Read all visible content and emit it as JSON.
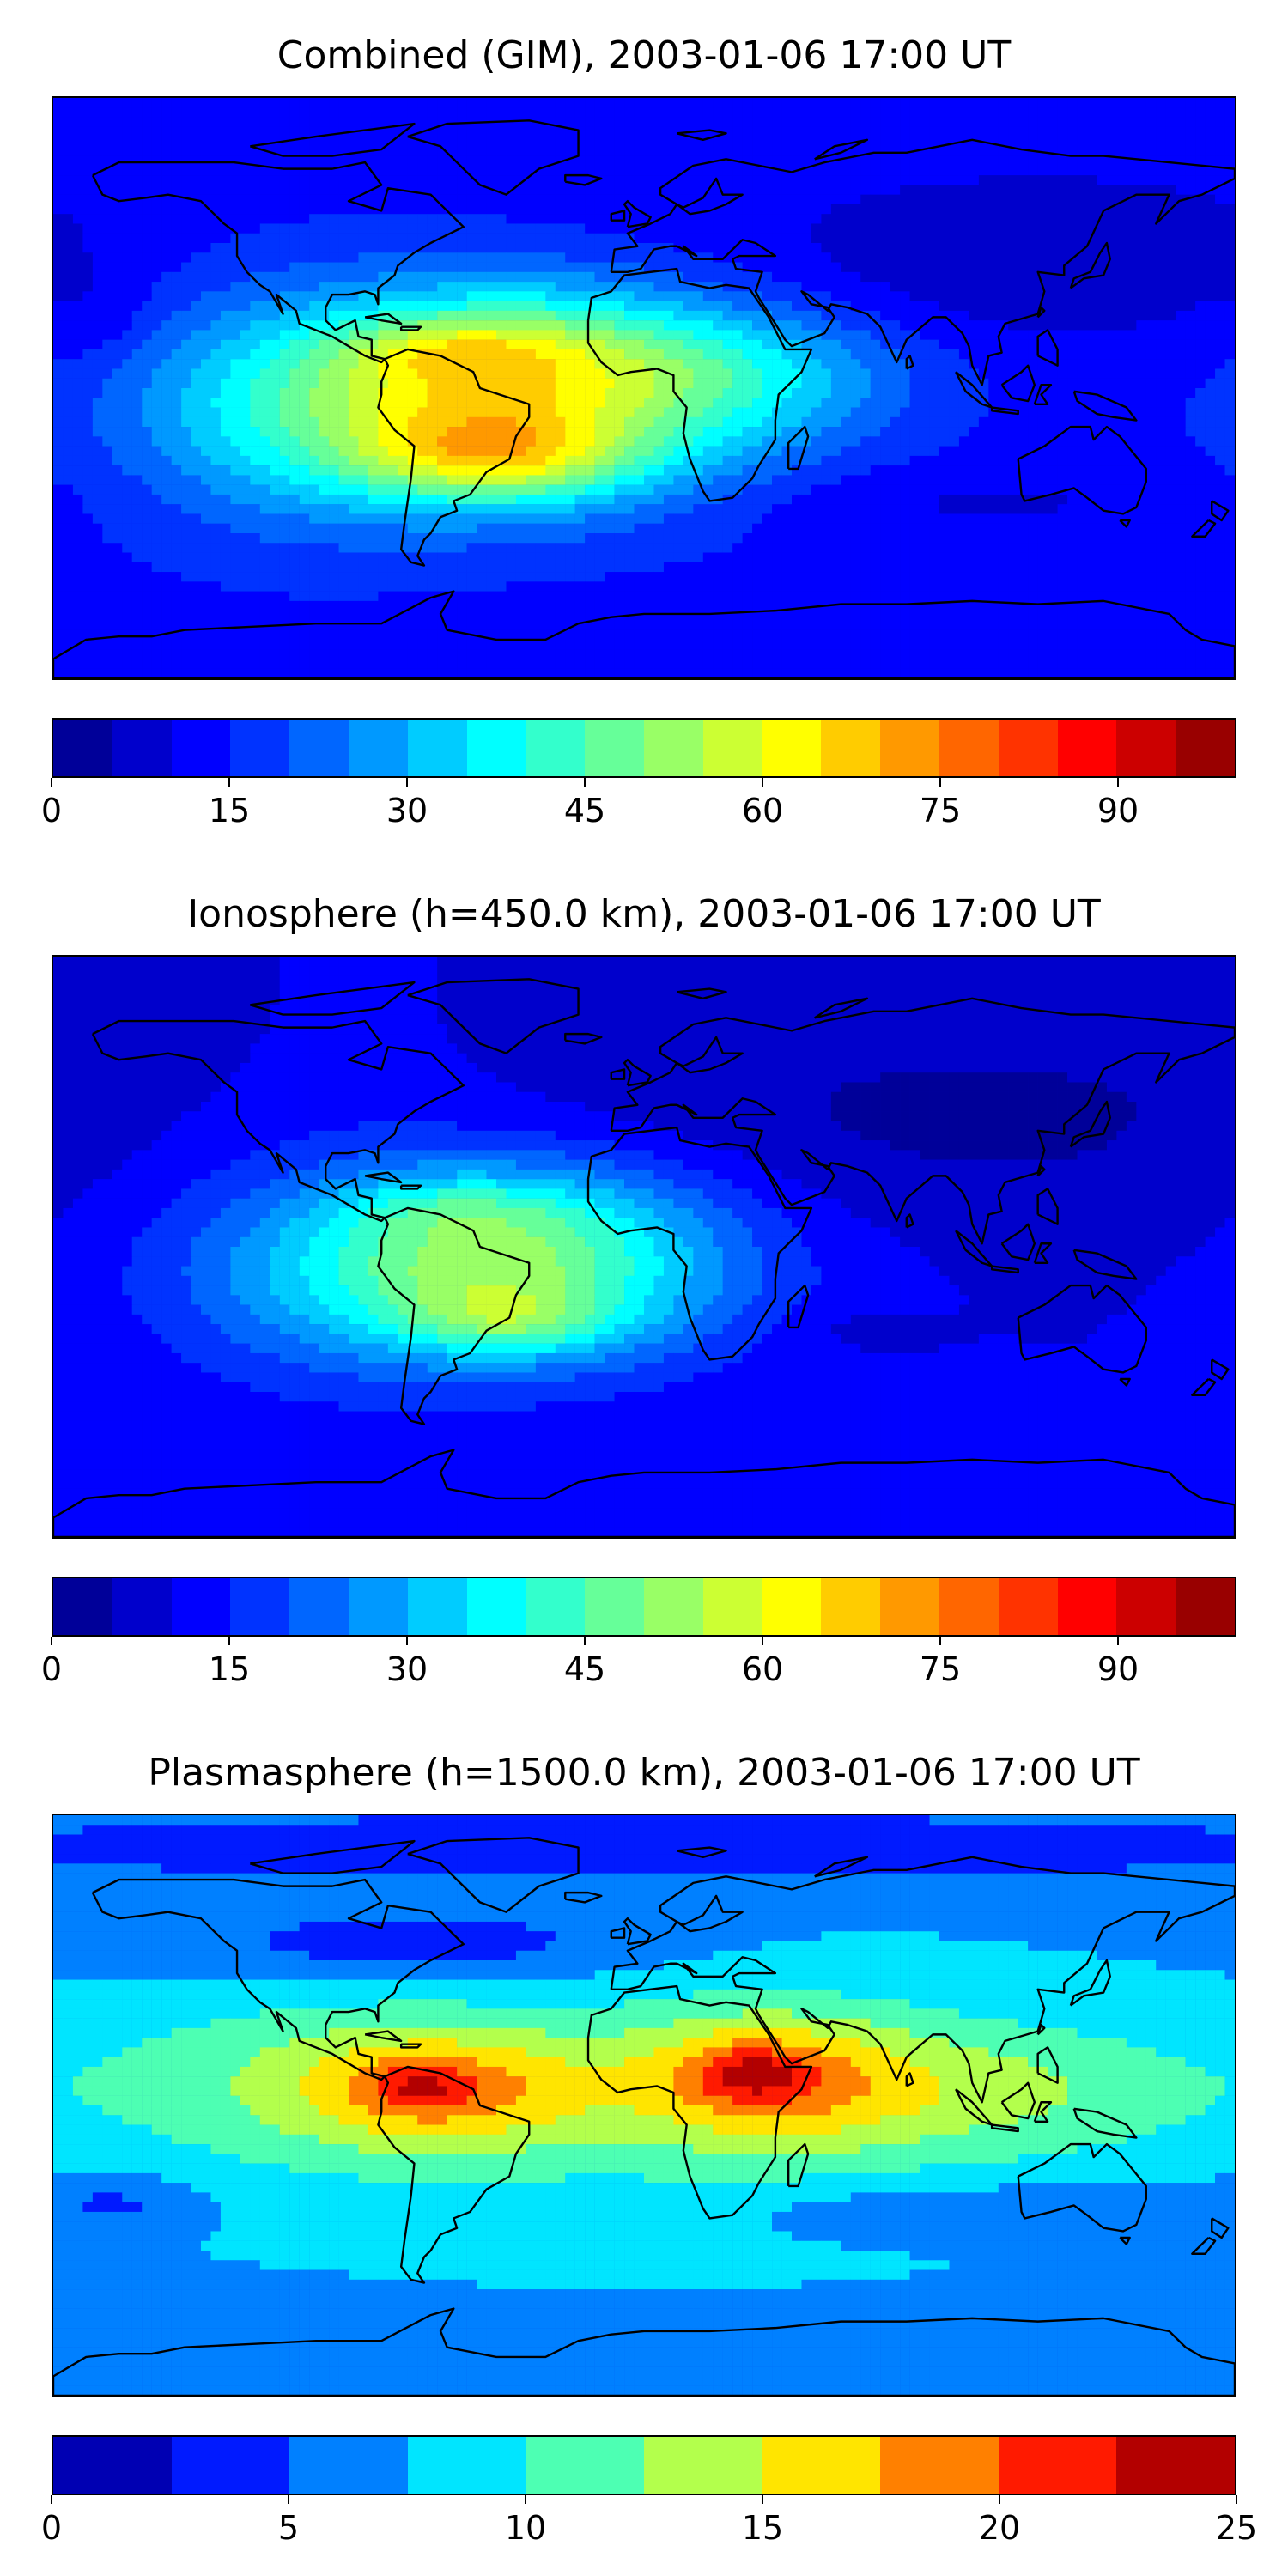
{
  "panels": [
    {
      "title": "Combined (GIM), 2003-01-06 17:00 UT",
      "field": "combined",
      "colorbar": {
        "min": 0,
        "max": 100,
        "levels": 20,
        "ticks": [
          "0",
          "15",
          "30",
          "45",
          "60",
          "75",
          "90"
        ],
        "tick_values": [
          0,
          15,
          30,
          45,
          60,
          75,
          90
        ]
      }
    },
    {
      "title": "Ionosphere  (h=450.0 km), 2003-01-06 17:00 UT",
      "field": "ionosphere",
      "colorbar": {
        "min": 0,
        "max": 100,
        "levels": 20,
        "ticks": [
          "0",
          "15",
          "30",
          "45",
          "60",
          "75",
          "90"
        ],
        "tick_values": [
          0,
          15,
          30,
          45,
          60,
          75,
          90
        ]
      }
    },
    {
      "title": "Plasmasphere (h=1500.0 km), 2003-01-06 17:00 UT",
      "field": "plasmasphere",
      "colorbar": {
        "min": 0,
        "max": 25,
        "levels": 10,
        "ticks": [
          "0",
          "5",
          "10",
          "15",
          "20",
          "25"
        ],
        "tick_values": [
          0,
          5,
          10,
          15,
          20,
          25
        ]
      }
    }
  ],
  "colormap": "jet",
  "coastline_color": "#000000"
}
